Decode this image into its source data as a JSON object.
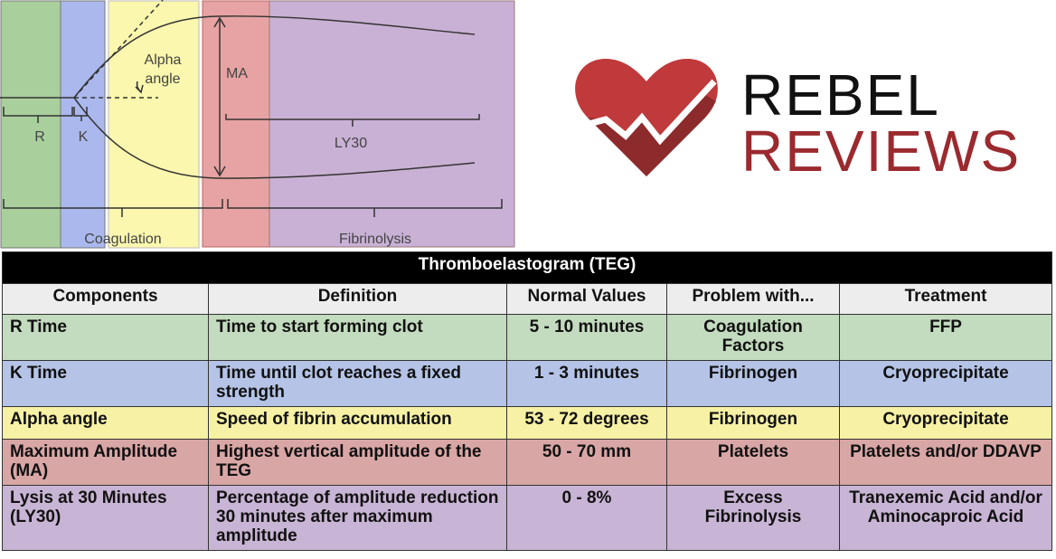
{
  "diagram": {
    "r": "R",
    "k": "K",
    "alpha": "Alpha angle",
    "ma": "MA",
    "ly30": "LY30",
    "coagulation": "Coagulation",
    "fibrinolysis": "Fibrinolysis"
  },
  "logo": {
    "line1": "REBEL",
    "line2": "REVIEWS"
  },
  "table": {
    "title": "Thromboelastogram (TEG)",
    "headers": [
      "Components",
      "Definition",
      "Normal Values",
      "Problem with...",
      "Treatment"
    ],
    "rows": [
      [
        "R Time",
        "Time to start forming clot",
        "5 - 10 minutes",
        "Coagulation Factors",
        "FFP"
      ],
      [
        "K Time",
        "Time until clot reaches a fixed strength",
        "1 - 3 minutes",
        "Fibrinogen",
        "Cryoprecipitate"
      ],
      [
        "Alpha angle",
        "Speed of fibrin accumulation",
        "53 - 72 degrees",
        "Fibrinogen",
        "Cryoprecipitate"
      ],
      [
        "Maximum Amplitude (MA)",
        "Highest vertical amplitude of the TEG",
        "50 - 70 mm",
        "Platelets",
        "Platelets and/or DDAVP"
      ],
      [
        "Lysis at 30 Minutes (LY30)",
        "Percentage of amplitude reduction 30 minutes after maximum amplitude",
        "0 - 8%",
        "Excess Fibrinolysis",
        "Tranexemic Acid and/or Aminocaproic Acid"
      ]
    ]
  }
}
